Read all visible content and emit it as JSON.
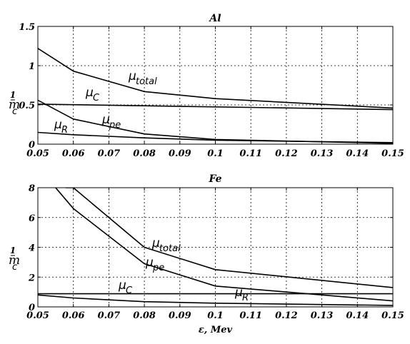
{
  "chart_data": [
    {
      "type": "line",
      "title": "Al",
      "xlabel": "",
      "ylabel": {
        "numerator": "1",
        "denominator": "m",
        "subscript": "c"
      },
      "xlim": [
        0.05,
        0.15
      ],
      "ylim": [
        0,
        1.5
      ],
      "grid": true,
      "xticks": [
        "0.05",
        "0.06",
        "0.07",
        "0.08",
        "0.09",
        "0.1",
        "0.11",
        "0.12",
        "0.13",
        "0.14",
        "0.15"
      ],
      "yticks": [
        "0",
        "0.5",
        "1",
        "1.5"
      ],
      "series": [
        {
          "name": "μtotal",
          "label": "μ",
          "sub": "total",
          "x": [
            0.05,
            0.06,
            0.08,
            0.1,
            0.15
          ],
          "y": [
            1.22,
            0.93,
            0.67,
            0.58,
            0.46
          ]
        },
        {
          "name": "μC",
          "label": "μ",
          "sub": "C",
          "x": [
            0.05,
            0.15
          ],
          "y": [
            0.51,
            0.44
          ]
        },
        {
          "name": "μpe",
          "label": "μ",
          "sub": "pe",
          "x": [
            0.05,
            0.06,
            0.08,
            0.1,
            0.15
          ],
          "y": [
            0.56,
            0.32,
            0.13,
            0.06,
            0.01
          ]
        },
        {
          "name": "μR",
          "label": "μ",
          "sub": "R",
          "x": [
            0.05,
            0.06,
            0.08,
            0.1,
            0.15
          ],
          "y": [
            0.15,
            0.12,
            0.08,
            0.05,
            0.02
          ]
        }
      ]
    },
    {
      "type": "line",
      "title": "Fe",
      "xlabel": "ε, Mev",
      "ylabel": {
        "numerator": "1",
        "denominator": "m",
        "subscript": "c"
      },
      "xlim": [
        0.05,
        0.15
      ],
      "ylim": [
        0,
        8
      ],
      "grid": true,
      "xticks": [
        "0.05",
        "0.06",
        "0.07",
        "0.08",
        "0.09",
        "0.1",
        "0.11",
        "0.12",
        "0.13",
        "0.14",
        "0.15"
      ],
      "yticks": [
        "0",
        "2",
        "4",
        "6",
        "8"
      ],
      "series": [
        {
          "name": "μtotal",
          "label": "μ",
          "sub": "total",
          "x": [
            0.0578,
            0.06,
            0.08,
            0.1,
            0.15
          ],
          "y": [
            8,
            8,
            4.0,
            2.5,
            1.3
          ]
        },
        {
          "name": "μpe",
          "label": "μ",
          "sub": "pe",
          "x": [
            0.05,
            0.06,
            0.08,
            0.1,
            0.15
          ],
          "y": [
            9.4,
            6.6,
            2.9,
            1.4,
            0.4
          ]
        },
        {
          "name": "μC",
          "label": "μ",
          "sub": "C",
          "x": [
            0.05,
            0.15
          ],
          "y": [
            0.88,
            0.88
          ]
        },
        {
          "name": "μR",
          "label": "μ",
          "sub": "R",
          "x": [
            0.05,
            0.06,
            0.08,
            0.1,
            0.15
          ],
          "y": [
            0.8,
            0.6,
            0.35,
            0.25,
            0.1
          ]
        }
      ]
    }
  ]
}
